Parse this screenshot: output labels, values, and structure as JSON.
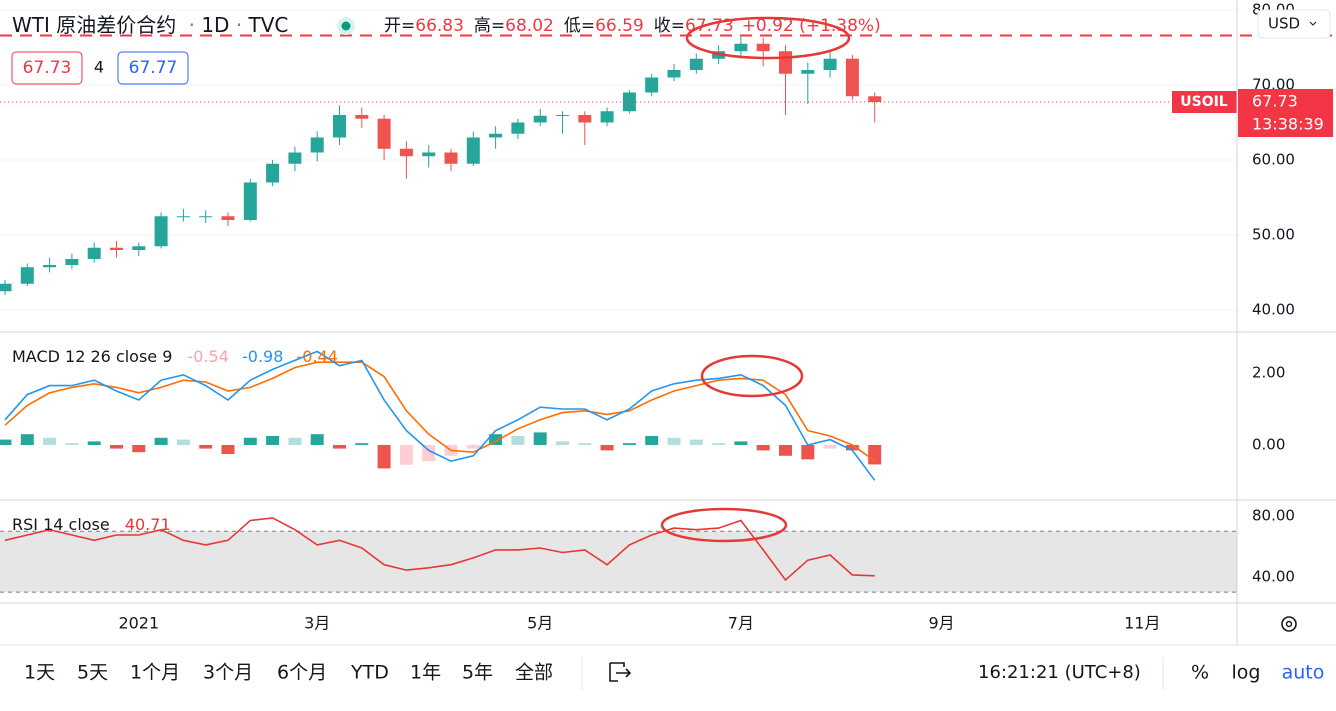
{
  "header": {
    "symbol": "WTI 原油差价合约",
    "interval": "1D",
    "source": "TVC",
    "ohlc": [
      {
        "label": "开",
        "value": 66.83
      },
      {
        "label": "高",
        "value": 68.02
      },
      {
        "label": "低",
        "value": 66.59
      },
      {
        "label": "收",
        "value": 67.73
      }
    ],
    "change": "+0.92 (+1.38%)",
    "bid": 67.73,
    "spread": 4,
    "ask": 67.77
  },
  "currency": "USD",
  "toolbar": {
    "ranges": [
      "1天",
      "5天",
      "1个月",
      "3个月",
      "6个月",
      "YTD",
      "1年",
      "5年",
      "全部"
    ],
    "time": "16:21:21 (UTC+8)",
    "percent": "%",
    "log": "log",
    "auto": "auto"
  },
  "chart_data": [
    {
      "type": "candlestick",
      "categories": [
        null,
        null,
        null,
        null,
        null,
        null,
        "2021",
        null,
        null,
        null,
        null,
        null,
        null,
        null,
        "3月",
        null,
        null,
        null,
        null,
        null,
        null,
        null,
        null,
        null,
        "5月",
        null,
        null,
        null,
        null,
        null,
        null,
        null,
        null,
        "7月",
        null,
        null,
        null,
        null,
        null,
        null,
        null,
        null,
        "9月",
        null,
        null,
        null,
        null,
        null,
        null,
        null,
        null,
        "11月"
      ],
      "open": [
        42.5,
        43.5,
        45.7,
        46,
        46.8,
        48.3,
        48,
        48.5,
        52.5,
        52.5,
        52.5,
        52,
        57,
        59.5,
        61,
        63,
        66,
        65.5,
        61.5,
        60.5,
        61,
        59.5,
        63,
        63.5,
        65,
        65.9,
        66,
        65,
        66.5,
        69,
        71,
        72,
        73.5,
        74.5,
        75.5,
        74.5,
        71.5,
        72,
        73.5,
        68.5,
        null,
        null,
        null,
        null,
        null,
        null,
        null,
        null,
        null,
        null,
        null,
        null
      ],
      "high": [
        44,
        46.2,
        47,
        47.5,
        49,
        49.2,
        49,
        53,
        53.5,
        53.3,
        53,
        57.5,
        60,
        61.8,
        63.8,
        67.3,
        67,
        66,
        62.5,
        62,
        61.5,
        63.8,
        64.5,
        65.5,
        66.8,
        66.5,
        66.5,
        67,
        69.3,
        71.5,
        72.8,
        74.2,
        75.3,
        76.6,
        76.3,
        75.3,
        73,
        74.5,
        74,
        69,
        null,
        null,
        null,
        null,
        null,
        null,
        null,
        null,
        null,
        null,
        null,
        null
      ],
      "low": [
        42,
        43.2,
        45,
        45.5,
        46.3,
        47,
        47.2,
        48.2,
        51.8,
        51.6,
        51.2,
        51.8,
        56.5,
        58.5,
        59.8,
        62,
        64.3,
        60,
        57.5,
        59,
        58.5,
        59.2,
        61.5,
        62.8,
        64.5,
        63.5,
        62,
        64.5,
        66.2,
        68.5,
        70.5,
        71.5,
        72.8,
        73.5,
        72.5,
        66,
        67.5,
        71,
        68,
        65,
        null,
        null,
        null,
        null,
        null,
        null,
        null,
        null,
        null,
        null,
        null,
        null
      ],
      "close": [
        43.5,
        45.7,
        46,
        46.8,
        48.3,
        48,
        48.5,
        52.5,
        52.5,
        52.5,
        52,
        57,
        59.5,
        61,
        63,
        66,
        65.5,
        61.5,
        60.5,
        61,
        59.5,
        63,
        63.5,
        65,
        65.9,
        66,
        65,
        66.5,
        69,
        71,
        72,
        73.5,
        74.5,
        75.5,
        74.5,
        71.5,
        72,
        73.5,
        68.5,
        67.73,
        null,
        null,
        null,
        null,
        null,
        null,
        null,
        null,
        null,
        null,
        null,
        null
      ],
      "up_color": "#26a69a",
      "down_color": "#ef5350",
      "ylim": [
        37.2,
        81.33
      ],
      "yticks": [
        {
          "value": 40,
          "label": "40.00"
        },
        {
          "value": 50,
          "label": "50.00"
        },
        {
          "value": 60,
          "label": "60.00"
        },
        {
          "value": 70,
          "label": "70.00"
        },
        {
          "value": 80,
          "label": "80.00"
        }
      ],
      "grid": true,
      "last_price": {
        "label": "USOIL",
        "countdown": "13:38:39"
      },
      "alert_line": 76.6
    },
    {
      "type": "macd",
      "title": "MACD 12 26 close 9",
      "histogram": {
        "colors": [
          "#26a69a",
          "#b2dfdb",
          "#ffcdd2",
          "#ef5350"
        ],
        "values": [
          0.15,
          0.3,
          0.2,
          0.05,
          0.1,
          -0.1,
          -0.2,
          0.2,
          0.15,
          -0.1,
          -0.25,
          0.2,
          0.25,
          0.2,
          0.3,
          -0.1,
          0.05,
          -0.65,
          -0.55,
          -0.45,
          -0.3,
          -0.1,
          0.3,
          0.25,
          0.35,
          0.1,
          0.05,
          -0.15,
          0.05,
          0.25,
          0.2,
          0.15,
          0.05,
          0.1,
          -0.15,
          -0.3,
          -0.4,
          -0.1,
          -0.15,
          -0.54,
          null,
          null,
          null,
          null,
          null,
          null,
          null,
          null,
          null,
          null,
          null,
          null
        ]
      },
      "macd": {
        "color": "#2196f3",
        "values": [
          0.7,
          1.4,
          1.65,
          1.65,
          1.8,
          1.5,
          1.25,
          1.8,
          1.95,
          1.65,
          1.25,
          1.8,
          2.1,
          2.35,
          2.6,
          2.2,
          2.35,
          1.25,
          0.4,
          -0.15,
          -0.45,
          -0.3,
          0.4,
          0.7,
          1.05,
          1.0,
          1.0,
          0.7,
          1.0,
          1.5,
          1.7,
          1.8,
          1.85,
          1.95,
          1.65,
          1.1,
          0,
          0.15,
          -0.15,
          -0.98,
          null,
          null,
          null,
          null,
          null,
          null,
          null,
          null,
          null,
          null,
          null,
          null
        ]
      },
      "signal": {
        "color": "#ff6d00",
        "values": [
          0.55,
          1.1,
          1.45,
          1.6,
          1.7,
          1.6,
          1.45,
          1.6,
          1.8,
          1.75,
          1.5,
          1.6,
          1.85,
          2.15,
          2.3,
          2.3,
          2.3,
          1.9,
          0.95,
          0.3,
          -0.15,
          -0.2,
          0.1,
          0.45,
          0.7,
          0.9,
          0.95,
          0.85,
          0.95,
          1.25,
          1.5,
          1.65,
          1.8,
          1.85,
          1.8,
          1.4,
          0.4,
          0.25,
          0,
          -0.44,
          null,
          null,
          null,
          null,
          null,
          null,
          null,
          null,
          null,
          null,
          null,
          null
        ]
      },
      "ylim": [
        -1.5,
        3.11
      ],
      "yticks": [
        {
          "value": 0,
          "label": "0.00"
        },
        {
          "value": 2,
          "label": "2.00"
        }
      ]
    },
    {
      "type": "rsi",
      "title": "RSI 14 close",
      "color": "#e53935",
      "values": [
        64,
        67.5,
        71,
        67.5,
        64,
        67.5,
        67.5,
        71,
        64,
        61,
        64,
        77,
        78.7,
        71,
        61,
        64,
        59,
        48,
        44.5,
        46,
        48,
        52.5,
        57.7,
        57.7,
        59,
        56,
        57.7,
        48,
        61,
        67.5,
        72,
        71,
        72,
        77,
        57.7,
        38,
        51,
        54.4,
        41.3,
        40.71,
        null,
        null,
        null,
        null,
        null,
        null,
        null,
        null,
        null,
        null,
        null,
        null
      ],
      "band": [
        30,
        70
      ],
      "band_color": "#e6e6e6",
      "ylim": [
        22.9,
        89.8
      ],
      "yticks": [
        {
          "value": 40,
          "label": "40.00"
        },
        {
          "value": 80,
          "label": "80.00"
        }
      ]
    }
  ]
}
